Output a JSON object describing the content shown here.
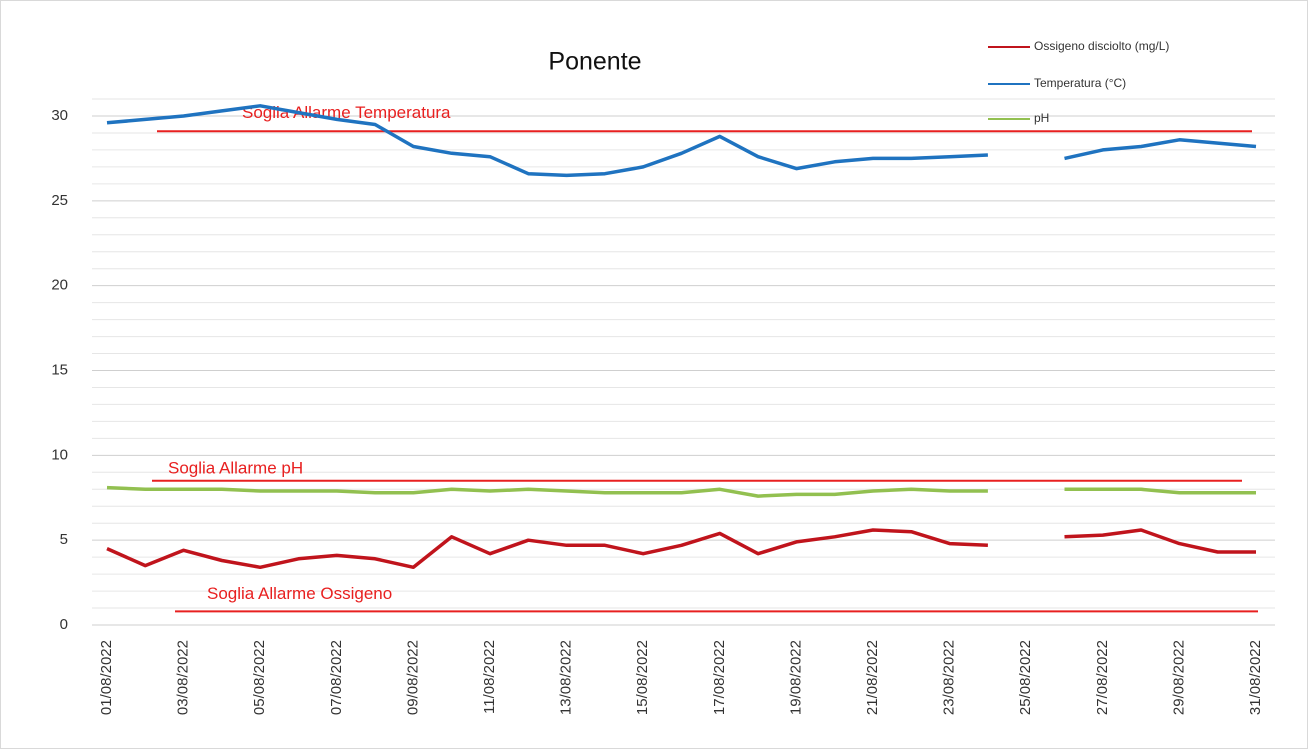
{
  "chart_data": {
    "type": "line",
    "title": "Ponente",
    "categories": [
      "01/08/2022",
      null,
      "03/08/2022",
      null,
      "05/08/2022",
      null,
      "07/08/2022",
      null,
      "09/08/2022",
      null,
      "11/08/2022",
      null,
      "13/08/2022",
      null,
      "15/08/2022",
      null,
      "17/08/2022",
      null,
      "19/08/2022",
      null,
      "21/08/2022",
      null,
      "23/08/2022",
      null,
      "25/08/2022",
      null,
      "27/08/2022",
      null,
      "29/08/2022",
      null,
      "31/08/2022"
    ],
    "series": [
      {
        "name": "Ossigeno disciolto (mg/L)",
        "color": "#c0141c",
        "values": [
          4.5,
          3.5,
          4.4,
          3.8,
          3.4,
          3.9,
          4.1,
          3.9,
          3.4,
          5.2,
          4.2,
          5.0,
          4.7,
          4.7,
          4.2,
          4.7,
          5.4,
          4.2,
          4.9,
          5.2,
          5.6,
          5.5,
          4.8,
          4.7,
          null,
          5.2,
          5.3,
          5.6,
          4.8,
          4.3,
          4.3
        ]
      },
      {
        "name": "Temperatura (°C)",
        "color": "#1f73c0",
        "values": [
          29.6,
          29.8,
          30.0,
          30.3,
          30.6,
          30.2,
          29.8,
          29.5,
          28.2,
          27.8,
          27.6,
          26.6,
          26.5,
          26.6,
          27.0,
          27.8,
          28.8,
          27.6,
          26.9,
          27.3,
          27.5,
          27.5,
          27.6,
          27.7,
          null,
          27.5,
          28.0,
          28.2,
          28.6,
          28.4,
          28.2
        ]
      },
      {
        "name": "pH",
        "color": "#92c050",
        "values": [
          8.1,
          8.0,
          8.0,
          8.0,
          7.9,
          7.9,
          7.9,
          7.8,
          7.8,
          8.0,
          7.9,
          8.0,
          7.9,
          7.8,
          7.8,
          7.8,
          8.0,
          7.6,
          7.7,
          7.7,
          7.9,
          8.0,
          7.9,
          7.9,
          null,
          8.0,
          8.0,
          8.0,
          7.8,
          7.8,
          7.8
        ]
      }
    ],
    "thresholds": [
      {
        "label": "Soglia Allarme Temperatura",
        "value": 29.1,
        "color": "#e82020"
      },
      {
        "label": "Soglia  Allarme pH",
        "value": 8.5,
        "color": "#e82020"
      },
      {
        "label": "Soglia  Allarme Ossigeno",
        "value": 0.8,
        "color": "#e82020"
      }
    ],
    "ylim": [
      0,
      31
    ],
    "yticks": [
      0,
      5,
      10,
      15,
      20,
      25,
      30
    ],
    "minor_grid_step": 1,
    "grid": true,
    "legend": "top-right"
  }
}
